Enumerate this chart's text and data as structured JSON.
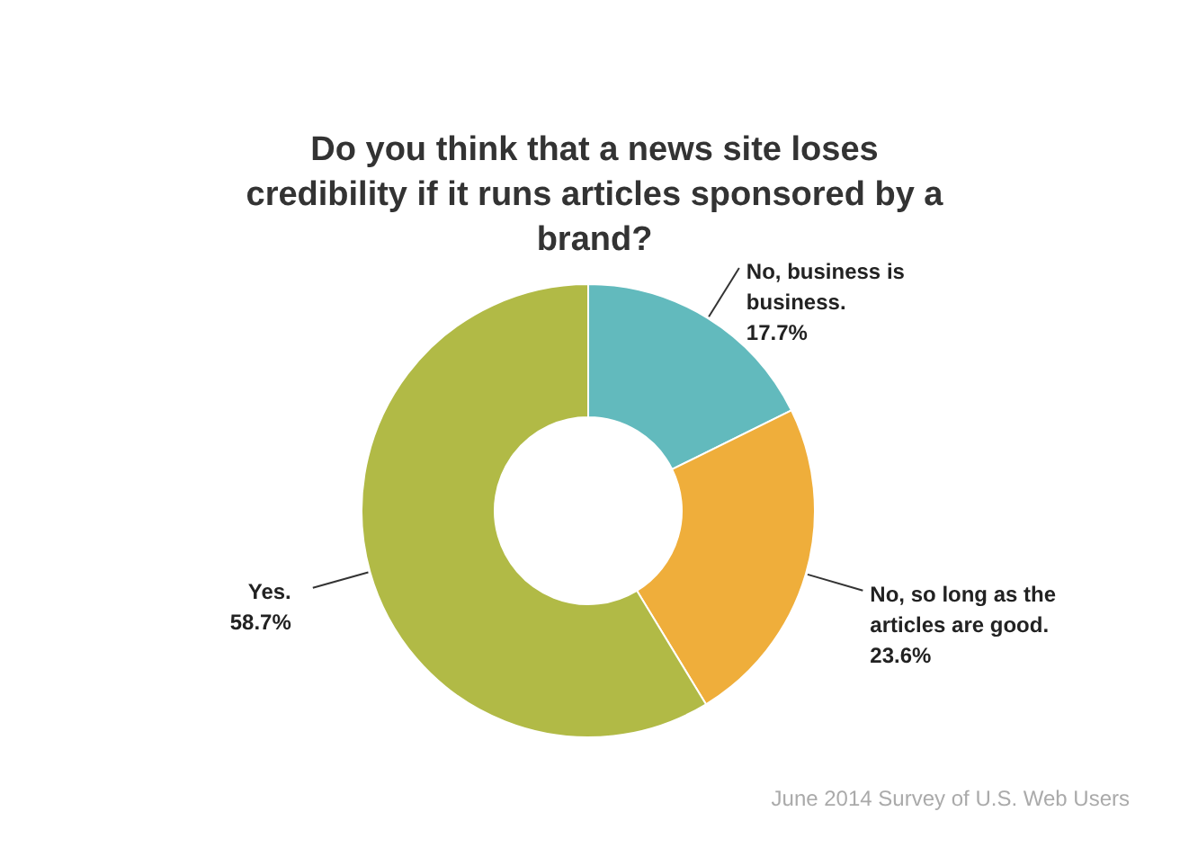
{
  "chart_data": {
    "type": "donut",
    "title": "Do you think that a news site loses credibility if it runs articles sponsored by a brand?",
    "categories": [
      "No, business is business.",
      "No, so long as the articles are good.",
      "Yes."
    ],
    "values": [
      17.7,
      23.6,
      58.7
    ],
    "colors": [
      "#62babd",
      "#efae3b",
      "#b1ba46"
    ],
    "value_labels": [
      "17.7%",
      "23.6%",
      "58.7%"
    ],
    "legend": false,
    "annotations": [
      "June 2014 Survey of U.S. Web Users"
    ]
  }
}
